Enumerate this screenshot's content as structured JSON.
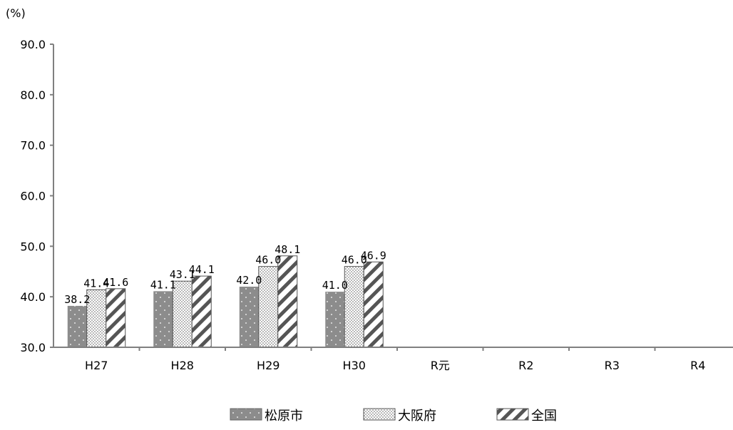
{
  "chart_data": {
    "type": "bar",
    "unit_label": "(%)",
    "categories": [
      "H27",
      "H28",
      "H29",
      "H30",
      "R元",
      "R2",
      "R3",
      "R4"
    ],
    "series": [
      {
        "name": "松原市",
        "values": [
          38.2,
          41.1,
          42.0,
          41.0,
          null,
          null,
          null,
          null
        ],
        "pattern": "dots",
        "color": "#808080"
      },
      {
        "name": "大阪府",
        "values": [
          41.4,
          43.1,
          46.0,
          46.0,
          null,
          null,
          null,
          null
        ],
        "pattern": "fine-dots",
        "color": "#ffffff"
      },
      {
        "name": "全国",
        "values": [
          41.6,
          44.1,
          48.1,
          46.9,
          null,
          null,
          null,
          null
        ],
        "pattern": "diagonal",
        "color": "#ffffff"
      }
    ],
    "ylim": [
      30.0,
      90.0
    ],
    "yticks": [
      "30.0",
      "40.0",
      "50.0",
      "60.0",
      "70.0",
      "80.0",
      "90.0"
    ],
    "grid": false,
    "legend_position": "bottom"
  }
}
